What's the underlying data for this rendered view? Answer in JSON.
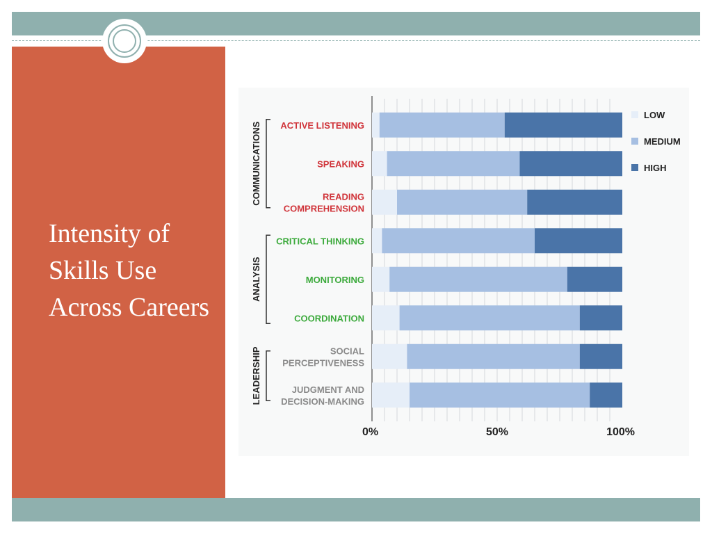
{
  "slide": {
    "title": "Intensity of Skills Use Across Careers"
  },
  "theme": {
    "panel_color": "#d16245",
    "band_color": "#8fb0ae"
  },
  "chart_data": {
    "type": "bar",
    "orientation": "horizontal",
    "stacked": true,
    "groups": [
      {
        "name": "COMMUNICATIONS",
        "categories": [
          "ACTIVE LISTENING",
          "SPEAKING",
          "READING COMPREHENSION"
        ],
        "color": "#d0343a"
      },
      {
        "name": "ANALYSIS",
        "categories": [
          "CRITICAL THINKING",
          "MONITORING",
          "COORDINATION"
        ],
        "color": "#3caa3c"
      },
      {
        "name": "LEADERSHIP",
        "categories": [
          "SOCIAL PERCEPTIVENESS",
          "JUDGMENT AND DECISION-MAKING"
        ],
        "color": "#8a8a8a"
      }
    ],
    "categories": [
      "ACTIVE LISTENING",
      "SPEAKING",
      "READING COMPREHENSION",
      "CRITICAL THINKING",
      "MONITORING",
      "COORDINATION",
      "SOCIAL PERCEPTIVENESS",
      "JUDGMENT AND DECISION-MAKING"
    ],
    "category_lines": [
      [
        "ACTIVE LISTENING"
      ],
      [
        "SPEAKING"
      ],
      [
        "READING",
        "COMPREHENSION"
      ],
      [
        "CRITICAL THINKING"
      ],
      [
        "MONITORING"
      ],
      [
        "COORDINATION"
      ],
      [
        "SOCIAL",
        "PERCEPTIVENESS"
      ],
      [
        "JUDGMENT AND",
        "DECISION-MAKING"
      ]
    ],
    "series": [
      {
        "name": "LOW",
        "color": "#e6eef8",
        "values": [
          3,
          6,
          10,
          4,
          7,
          11,
          14,
          15
        ]
      },
      {
        "name": "MEDIUM",
        "color": "#a6bfe2",
        "values": [
          50,
          53,
          52,
          61,
          71,
          72,
          69,
          72
        ]
      },
      {
        "name": "HIGH",
        "color": "#4a74a8",
        "values": [
          47,
          41,
          38,
          35,
          22,
          17,
          17,
          13
        ]
      }
    ],
    "x_ticks": [
      "0%",
      "50%",
      "100%"
    ],
    "xlim": [
      0,
      100
    ],
    "grid": true,
    "legend_position": "top-right"
  }
}
